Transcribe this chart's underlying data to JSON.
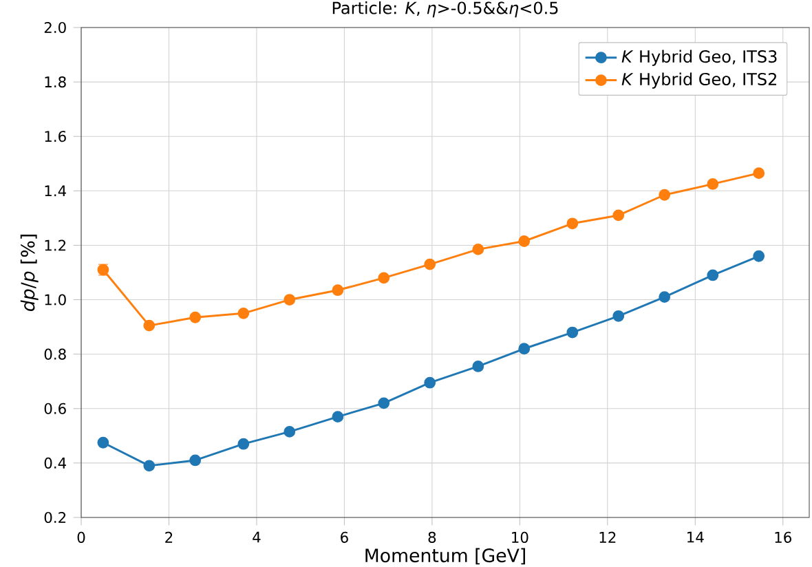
{
  "chart_data": {
    "type": "line",
    "title": "Particle: *K*, *η*>-0.5&&*η*<0.5",
    "xlabel": "Momentum [GeV]",
    "ylabel": "*dp*/*p* [%]",
    "x": [
      0.5,
      1.55,
      2.6,
      3.7,
      4.75,
      5.85,
      6.9,
      7.95,
      9.05,
      10.1,
      11.2,
      12.25,
      13.3,
      14.4,
      15.45
    ],
    "series": [
      {
        "name": "*K* Hybrid Geo, ITS3",
        "color": "#1f77b4",
        "values": [
          0.475,
          0.39,
          0.41,
          0.47,
          0.515,
          0.57,
          0.62,
          0.695,
          0.755,
          0.82,
          0.88,
          0.94,
          1.01,
          1.09,
          1.16
        ]
      },
      {
        "name": "*K* Hybrid Geo, ITS2",
        "color": "#ff7f0e",
        "values": [
          1.11,
          0.905,
          0.935,
          0.95,
          1.0,
          1.035,
          1.08,
          1.13,
          1.185,
          1.215,
          1.28,
          1.31,
          1.385,
          1.425,
          1.465
        ],
        "errors": [
          0.02,
          null,
          null,
          null,
          null,
          null,
          null,
          null,
          null,
          null,
          null,
          null,
          null,
          null,
          null
        ]
      }
    ],
    "xlim": [
      0,
      16.6
    ],
    "ylim": [
      0.2,
      2.0
    ],
    "xticks": [
      0,
      2,
      4,
      6,
      8,
      10,
      12,
      14,
      16
    ],
    "yticks": [
      0.2,
      0.4,
      0.6,
      0.8,
      {
        "value": 1.0,
        "label": "1.0"
      },
      1.2,
      1.4,
      1.6,
      1.8,
      {
        "value": 2.0,
        "label": "2.0"
      }
    ],
    "grid": true,
    "legend": "top right",
    "marker": "circle",
    "line_style": "solid"
  }
}
